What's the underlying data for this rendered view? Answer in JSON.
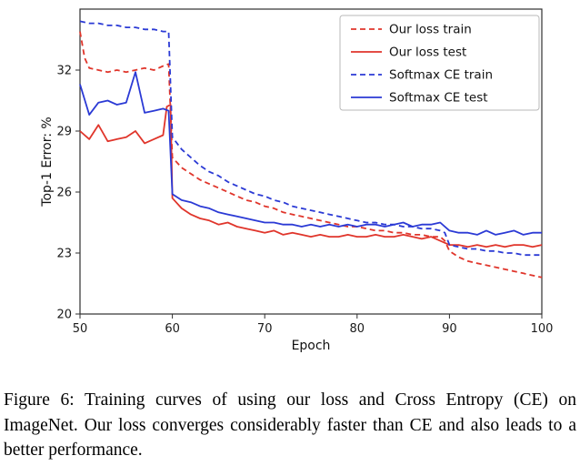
{
  "caption": {
    "text": "Figure 6: Training curves of using our loss and Cross Entropy (CE) on ImageNet. Our loss converges considerably faster than CE and also leads to a better performance."
  },
  "chart_data": {
    "type": "line",
    "title": "",
    "xlabel": "Epoch",
    "ylabel": "Top-1 Error: %",
    "xlim": [
      50,
      100
    ],
    "ylim": [
      20,
      35
    ],
    "xticks": [
      50,
      60,
      70,
      80,
      90,
      100
    ],
    "yticks": [
      20,
      23,
      26,
      29,
      32
    ],
    "grid": false,
    "legend_position": "upper right",
    "colors": {
      "red": "#e0352b",
      "blue": "#2b3ad5"
    },
    "series": [
      {
        "name": "Our loss train",
        "color": "red",
        "style": "dashed",
        "x": [
          50,
          50.5,
          51,
          52,
          53,
          54,
          55,
          56,
          57,
          58,
          59,
          59.6,
          60,
          61,
          62,
          63,
          64,
          65,
          66,
          67,
          68,
          69,
          70,
          71,
          72,
          73,
          74,
          75,
          76,
          77,
          78,
          79,
          80,
          81,
          82,
          83,
          84,
          85,
          86,
          87,
          88,
          89,
          89.5,
          90,
          91,
          92,
          93,
          94,
          95,
          96,
          97,
          98,
          99,
          100
        ],
        "y": [
          33.9,
          32.6,
          32.1,
          32.0,
          31.9,
          32.0,
          31.9,
          32.0,
          32.1,
          32.0,
          32.2,
          32.3,
          27.7,
          27.2,
          26.9,
          26.6,
          26.4,
          26.2,
          26.0,
          25.8,
          25.6,
          25.5,
          25.3,
          25.2,
          25.0,
          24.9,
          24.8,
          24.7,
          24.6,
          24.5,
          24.4,
          24.3,
          24.3,
          24.2,
          24.1,
          24.1,
          24.0,
          24.0,
          23.9,
          23.9,
          23.8,
          23.8,
          23.6,
          23.1,
          22.8,
          22.6,
          22.5,
          22.4,
          22.3,
          22.2,
          22.1,
          22.0,
          21.9,
          21.8
        ]
      },
      {
        "name": "Our loss test",
        "color": "red",
        "style": "solid",
        "x": [
          50,
          51,
          52,
          53,
          54,
          55,
          56,
          57,
          58,
          59,
          59.4,
          59.8,
          60,
          61,
          62,
          63,
          64,
          65,
          66,
          67,
          68,
          69,
          70,
          71,
          72,
          73,
          74,
          75,
          76,
          77,
          78,
          79,
          80,
          81,
          82,
          83,
          84,
          85,
          86,
          87,
          88,
          89,
          90,
          91,
          92,
          93,
          94,
          95,
          96,
          97,
          98,
          99,
          100
        ],
        "y": [
          29.0,
          28.6,
          29.3,
          28.5,
          28.6,
          28.7,
          29.0,
          28.4,
          28.6,
          28.8,
          30.2,
          30.3,
          25.7,
          25.2,
          24.9,
          24.7,
          24.6,
          24.4,
          24.5,
          24.3,
          24.2,
          24.1,
          24.0,
          24.1,
          23.9,
          24.0,
          23.9,
          23.8,
          23.9,
          23.8,
          23.8,
          23.9,
          23.8,
          23.8,
          23.9,
          23.8,
          23.8,
          23.9,
          23.8,
          23.7,
          23.8,
          23.6,
          23.4,
          23.4,
          23.3,
          23.4,
          23.3,
          23.4,
          23.3,
          23.4,
          23.4,
          23.3,
          23.4
        ]
      },
      {
        "name": "Softmax CE train",
        "color": "blue",
        "style": "dashed",
        "x": [
          50,
          51,
          52,
          53,
          54,
          55,
          56,
          57,
          58,
          59,
          59.6,
          60,
          61,
          62,
          63,
          64,
          65,
          66,
          67,
          68,
          69,
          70,
          71,
          72,
          73,
          74,
          75,
          76,
          77,
          78,
          79,
          80,
          81,
          82,
          83,
          84,
          85,
          86,
          87,
          88,
          89,
          89.5,
          90,
          91,
          92,
          93,
          94,
          95,
          96,
          97,
          98,
          99,
          100
        ],
        "y": [
          34.4,
          34.3,
          34.3,
          34.2,
          34.2,
          34.1,
          34.1,
          34.0,
          34.0,
          33.9,
          33.9,
          28.7,
          28.1,
          27.7,
          27.3,
          27.0,
          26.8,
          26.5,
          26.3,
          26.1,
          25.9,
          25.8,
          25.6,
          25.5,
          25.3,
          25.2,
          25.1,
          25.0,
          24.9,
          24.8,
          24.7,
          24.6,
          24.5,
          24.5,
          24.4,
          24.4,
          24.3,
          24.3,
          24.2,
          24.2,
          24.1,
          24.0,
          23.4,
          23.3,
          23.2,
          23.2,
          23.1,
          23.1,
          23.0,
          23.0,
          22.9,
          22.9,
          22.9
        ]
      },
      {
        "name": "Softmax CE test",
        "color": "blue",
        "style": "solid",
        "x": [
          50,
          51,
          52,
          53,
          54,
          55,
          56,
          57,
          58,
          59,
          59.6,
          60,
          61,
          62,
          63,
          64,
          65,
          66,
          67,
          68,
          69,
          70,
          71,
          72,
          73,
          74,
          75,
          76,
          77,
          78,
          79,
          80,
          81,
          82,
          83,
          84,
          85,
          86,
          87,
          88,
          89,
          90,
          91,
          92,
          93,
          94,
          95,
          96,
          97,
          98,
          99,
          100
        ],
        "y": [
          31.3,
          29.8,
          30.4,
          30.5,
          30.3,
          30.4,
          31.9,
          29.9,
          30.0,
          30.1,
          30.0,
          25.9,
          25.6,
          25.5,
          25.3,
          25.2,
          25.0,
          24.9,
          24.8,
          24.7,
          24.6,
          24.5,
          24.5,
          24.4,
          24.4,
          24.3,
          24.4,
          24.3,
          24.4,
          24.3,
          24.4,
          24.3,
          24.4,
          24.4,
          24.3,
          24.4,
          24.5,
          24.3,
          24.4,
          24.4,
          24.5,
          24.1,
          24.0,
          24.0,
          23.9,
          24.1,
          23.9,
          24.0,
          24.1,
          23.9,
          24.0,
          24.0
        ]
      }
    ]
  }
}
